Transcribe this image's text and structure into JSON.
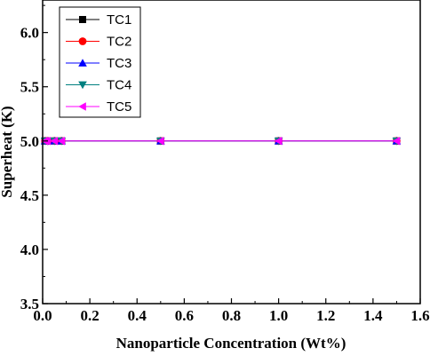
{
  "chart_data": {
    "type": "line",
    "xlabel": "Nanoparticle Concentration (Wt%)",
    "ylabel": "Superheat (K)",
    "xlim": [
      0.0,
      1.6
    ],
    "ylim": [
      3.5,
      6.3
    ],
    "x_ticks": [
      "0.0",
      "0.2",
      "0.4",
      "0.6",
      "0.8",
      "1.0",
      "1.2",
      "1.4",
      "1.6"
    ],
    "y_ticks": [
      "3.5",
      "4.0",
      "4.5",
      "5.0",
      "5.5",
      "6.0"
    ],
    "x": [
      0.01,
      0.02,
      0.05,
      0.08,
      0.5,
      1.0,
      1.5
    ],
    "legend_position": "top-left",
    "series": [
      {
        "name": "TC1",
        "color": "#000000",
        "marker": "square",
        "values": [
          5,
          5,
          5,
          5,
          5,
          5,
          5
        ]
      },
      {
        "name": "TC2",
        "color": "#ff0000",
        "marker": "circle",
        "values": [
          5,
          5,
          5,
          5,
          5,
          5,
          5
        ]
      },
      {
        "name": "TC3",
        "color": "#0000ff",
        "marker": "triangle-up",
        "values": [
          5,
          5,
          5,
          5,
          5,
          5,
          5
        ]
      },
      {
        "name": "TC4",
        "color": "#008080",
        "marker": "triangle-down",
        "values": [
          5,
          5,
          5,
          5,
          5,
          5,
          5
        ]
      },
      {
        "name": "TC5",
        "color": "#ff00ff",
        "marker": "triangle-left",
        "values": [
          5,
          5,
          5,
          5,
          5,
          5,
          5
        ]
      }
    ]
  }
}
